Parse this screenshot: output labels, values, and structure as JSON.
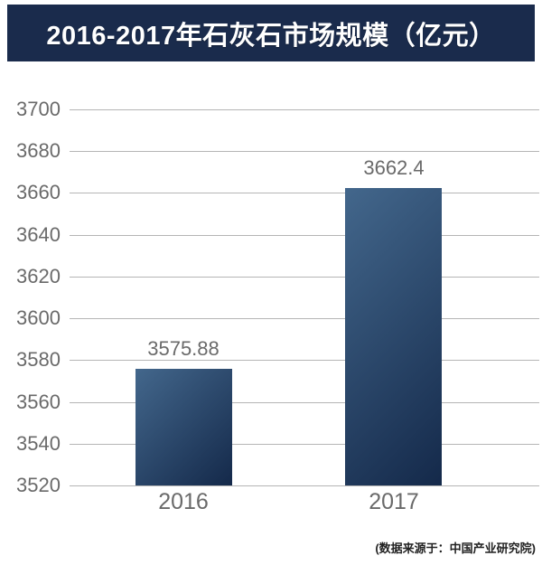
{
  "header": {
    "title": "2016-2017年石灰石市场规模（亿元）",
    "bg_color": "#1a2b4c",
    "text_color": "#ffffff"
  },
  "footer": {
    "source_note": "(数据来源于：中国产业研究院)"
  },
  "chart_data": {
    "type": "bar",
    "title": "2016-2017年石灰石市场规模（亿元）",
    "categories": [
      "2016",
      "2017"
    ],
    "values": [
      3575.88,
      3662.4
    ],
    "data_labels": [
      "3575.88",
      "3662.4"
    ],
    "xlabel": "",
    "ylabel": "",
    "ylim": [
      3520,
      3700
    ],
    "ytick_step": 20,
    "ytick_labels": [
      "3520",
      "3540",
      "3560",
      "3580",
      "3600",
      "3620",
      "3640",
      "3660",
      "3680",
      "3700"
    ],
    "grid": true,
    "legend": false,
    "colors": {
      "bar_gradient_start": "#43678c",
      "bar_gradient_end": "#14294a",
      "gridline": "#b5b5b5",
      "tick_label": "#6a6a6a",
      "value_label": "#6a6a6a"
    }
  }
}
